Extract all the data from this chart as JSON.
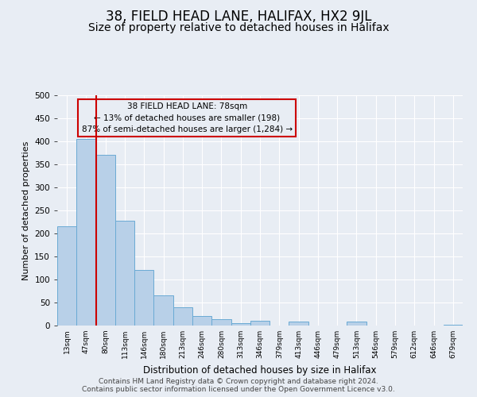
{
  "title": "38, FIELD HEAD LANE, HALIFAX, HX2 9JL",
  "subtitle": "Size of property relative to detached houses in Halifax",
  "xlabel": "Distribution of detached houses by size in Halifax",
  "ylabel": "Number of detached properties",
  "bar_labels": [
    "13sqm",
    "47sqm",
    "80sqm",
    "113sqm",
    "146sqm",
    "180sqm",
    "213sqm",
    "246sqm",
    "280sqm",
    "313sqm",
    "346sqm",
    "379sqm",
    "413sqm",
    "446sqm",
    "479sqm",
    "513sqm",
    "546sqm",
    "579sqm",
    "612sqm",
    "646sqm",
    "679sqm"
  ],
  "bar_values": [
    215,
    405,
    370,
    228,
    120,
    65,
    40,
    20,
    14,
    5,
    10,
    0,
    8,
    0,
    0,
    8,
    0,
    0,
    0,
    0,
    2
  ],
  "bar_color": "#b8d0e8",
  "bar_edge_color": "#6aaad4",
  "bg_color": "#e8edf4",
  "grid_color": "#ffffff",
  "marker_line_color": "#cc0000",
  "annotation_line1": "38 FIELD HEAD LANE: 78sqm",
  "annotation_line2": "← 13% of detached houses are smaller (198)",
  "annotation_line3": "87% of semi-detached houses are larger (1,284) →",
  "annotation_box_edge": "#cc0000",
  "footer1": "Contains HM Land Registry data © Crown copyright and database right 2024.",
  "footer2": "Contains public sector information licensed under the Open Government Licence v3.0.",
  "ylim": [
    0,
    500
  ],
  "yticks": [
    0,
    50,
    100,
    150,
    200,
    250,
    300,
    350,
    400,
    450,
    500
  ],
  "title_fontsize": 12,
  "subtitle_fontsize": 10,
  "footer_fontsize": 6.5
}
